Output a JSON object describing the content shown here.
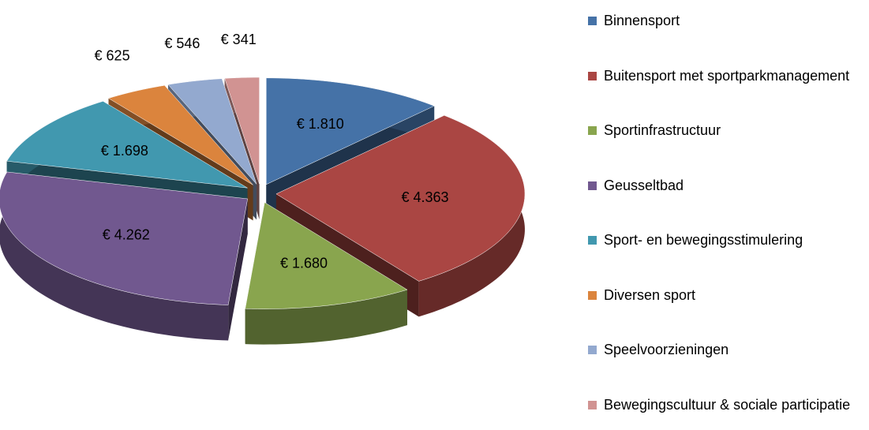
{
  "chart_data": {
    "type": "pie",
    "categories": [
      "Binnensport",
      "Buitensport met sportparkmanagement",
      "Sportinfrastructuur",
      "Geusseltbad",
      "Sport- en bewegingsstimulering",
      "Diversen sport",
      "Speelvoorzieningen",
      "Bewegingscultuur & sociale participatie"
    ],
    "values": [
      1810,
      4363,
      1680,
      4262,
      1698,
      625,
      546,
      341
    ],
    "value_labels": [
      "€ 1.810",
      "€ 4.363",
      "€ 1.680",
      "€ 4.262",
      "€ 1.698",
      "€ 625",
      "€ 546",
      "€ 341"
    ],
    "colors": [
      "#4572a7",
      "#aa4643",
      "#89a54e",
      "#71588f",
      "#4198af",
      "#db843d",
      "#93a9cf",
      "#d19392"
    ],
    "legend": "right"
  }
}
